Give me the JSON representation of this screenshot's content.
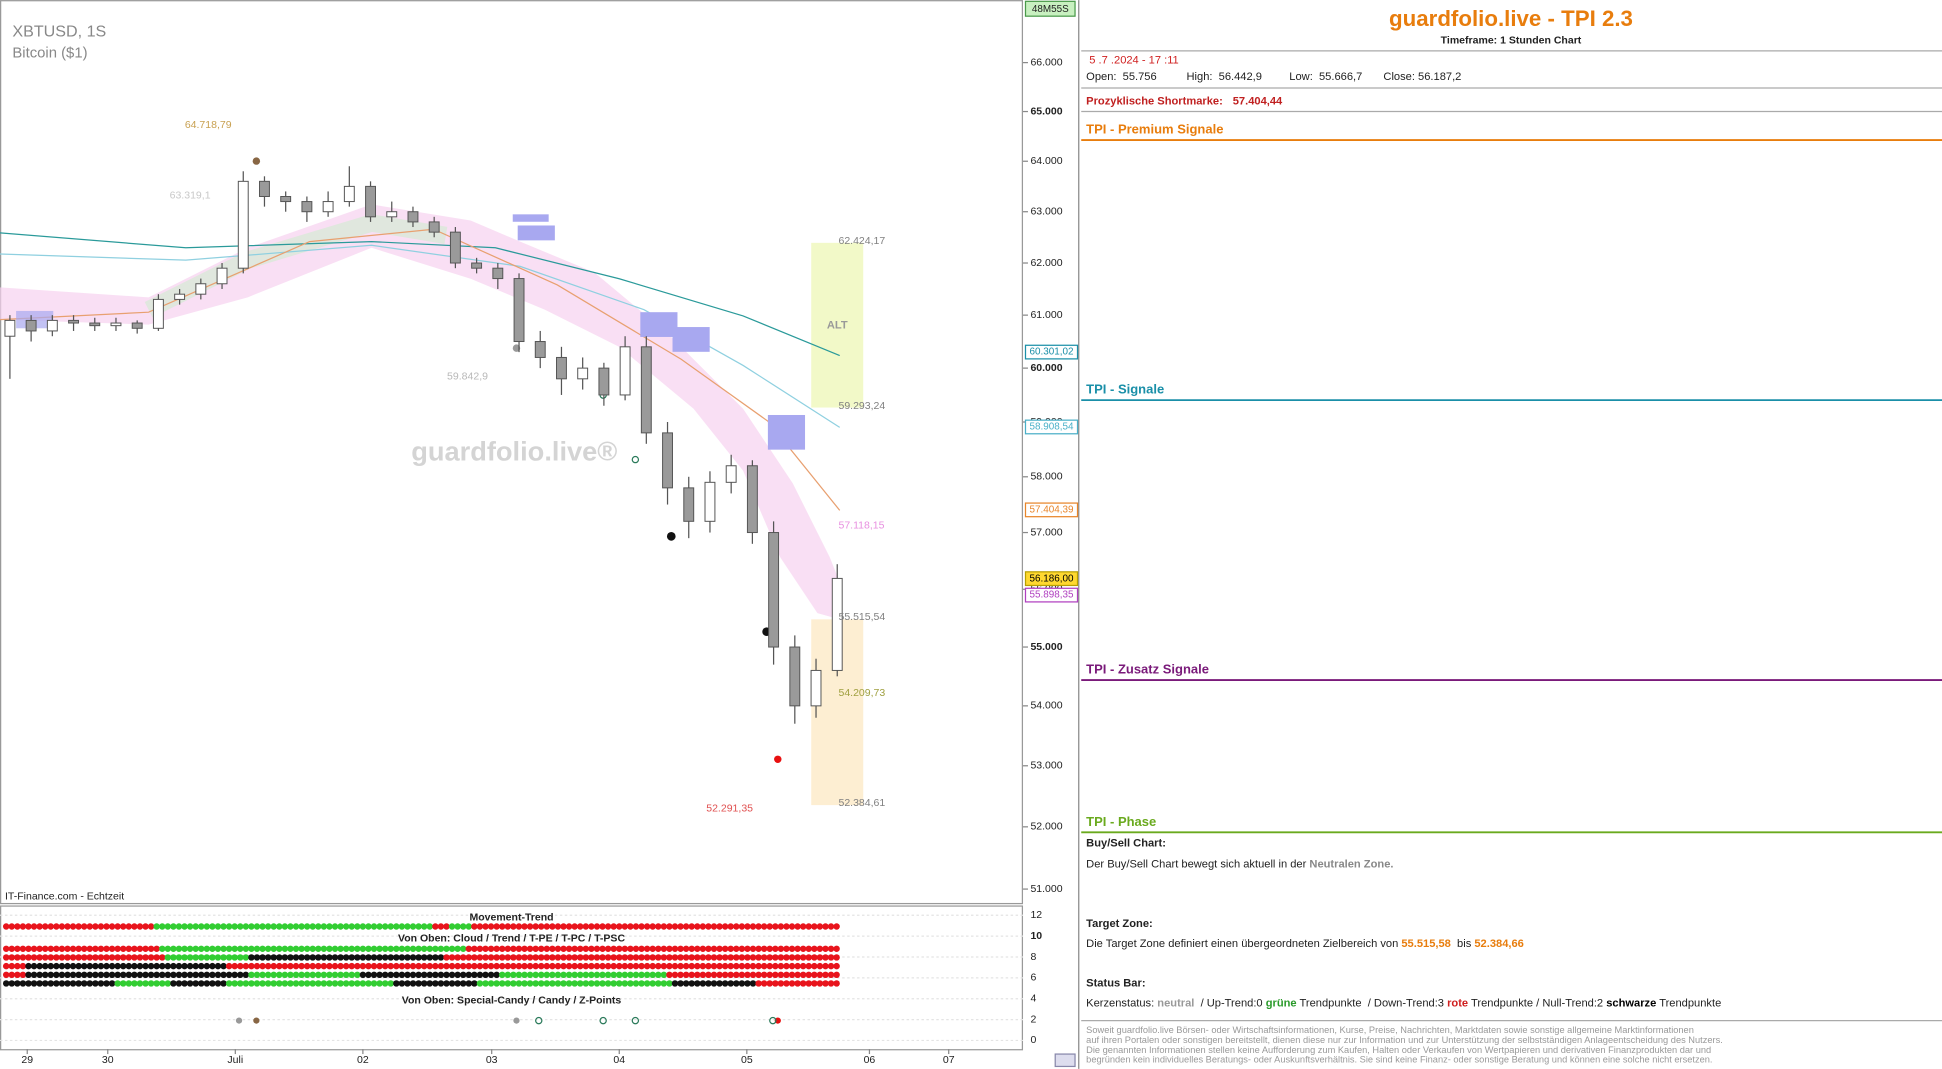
{
  "chart_data": {
    "type": "candlestick",
    "title": "XBTUSD, 1S",
    "subtitle": "Bitcoin ($1)",
    "watermark": "guardfolio.live®",
    "source": "IT-Finance.com - Echtzeit",
    "timer": "48M55S",
    "log_scale": true,
    "ylim": [
      50760,
      67300
    ],
    "yticks": [
      {
        "value": 51000,
        "label": "51.000"
      },
      {
        "value": 52000,
        "label": "52.000"
      },
      {
        "value": 53000,
        "label": "53.000"
      },
      {
        "value": 54000,
        "label": "54.000"
      },
      {
        "value": 55000,
        "label": "55.000"
      },
      {
        "value": 56000,
        "label": "56.000"
      },
      {
        "value": 57000,
        "label": "57.000"
      },
      {
        "value": 58000,
        "label": "58.000"
      },
      {
        "value": 59000,
        "label": "59.000"
      },
      {
        "value": 60000,
        "label": "60.000"
      },
      {
        "value": 61000,
        "label": "61.000"
      },
      {
        "value": 62000,
        "label": "62.000"
      },
      {
        "value": 63000,
        "label": "63.000"
      },
      {
        "value": 64000,
        "label": "64.000"
      },
      {
        "value": 65000,
        "label": "65.000"
      },
      {
        "value": 66000,
        "label": "66.000"
      }
    ],
    "x_labels": [
      "29",
      "30",
      "Juli",
      "02",
      "03",
      "04",
      "05",
      "06",
      "07"
    ],
    "open": [
      60600,
      60900,
      60700,
      60900,
      60850,
      60800,
      60850,
      60750,
      61300,
      61400,
      61600,
      61900,
      63600,
      63300,
      63200,
      63000,
      63200,
      63500,
      62900,
      63000,
      62800,
      62600,
      62000,
      61900,
      61700,
      60500,
      60200,
      59800,
      60000,
      59500,
      60400,
      58800,
      57800,
      57200,
      57900,
      58200,
      57000,
      55000,
      54000,
      54600
    ],
    "high": [
      61000,
      61000,
      61000,
      61000,
      60950,
      60950,
      60900,
      61400,
      61500,
      61700,
      62000,
      63800,
      63700,
      63400,
      63300,
      63400,
      63900,
      63600,
      63200,
      63100,
      62900,
      62700,
      62100,
      62000,
      61800,
      60700,
      60400,
      60200,
      60100,
      60600,
      60600,
      59000,
      58000,
      58100,
      58400,
      58300,
      57200,
      55200,
      54800,
      56440
    ],
    "low": [
      59800,
      60500,
      60600,
      60700,
      60700,
      60700,
      60650,
      60700,
      61200,
      61300,
      61500,
      61800,
      63100,
      63000,
      62800,
      62900,
      63100,
      62800,
      62800,
      62700,
      62500,
      61900,
      61800,
      61500,
      60300,
      60000,
      59500,
      59600,
      59300,
      59400,
      58600,
      57500,
      56900,
      57000,
      57700,
      56800,
      54700,
      53700,
      53800,
      54500
    ],
    "close": [
      60900,
      60700,
      60900,
      60850,
      60800,
      60850,
      60750,
      61300,
      61400,
      61600,
      61900,
      63600,
      63300,
      63200,
      63000,
      63200,
      63500,
      62900,
      63000,
      62800,
      62600,
      62000,
      61900,
      61700,
      60500,
      60200,
      59800,
      60000,
      59500,
      60400,
      58800,
      57800,
      57200,
      57900,
      58200,
      57000,
      55000,
      54000,
      54600,
      56190
    ],
    "up_color": "#ffffff",
    "down_color": "#9a9a9a",
    "price_labels": [
      {
        "value": 60301.02,
        "label": "60.301,02",
        "color": "#1a8fa8",
        "fill": "#ffffff"
      },
      {
        "value": 58908.54,
        "label": "58.908,54",
        "color": "#4ab0c8",
        "fill": "#ffffff"
      },
      {
        "value": 57404.39,
        "label": "57.404,39",
        "color": "#e8852a",
        "fill": "#ffffff"
      },
      {
        "value": 56186.0,
        "label": "56.186,00",
        "color": "#b8a000",
        "fill": "#ffd830"
      },
      {
        "value": 55898.35,
        "label": "55.898,35",
        "color": "#b040c0",
        "fill": "#ffffff"
      }
    ],
    "annotations": [
      {
        "value": 64718.79,
        "label": "64.718,79",
        "color": "#c8a050"
      },
      {
        "value": 63319.1,
        "label": "63.319,1",
        "color": "#c8c8c8"
      },
      {
        "value": 59842.9,
        "label": "59.842,9",
        "color": "#b8b8b8"
      },
      {
        "value": 62424.17,
        "label": "62.424,17",
        "color": "#808080"
      },
      {
        "value": 59293.24,
        "label": "59.293,24",
        "color": "#808080"
      },
      {
        "value": 57118.15,
        "label": "57.118,15",
        "color": "#e890e0"
      },
      {
        "value": 55515.54,
        "label": "55.515,54",
        "color": "#808080"
      },
      {
        "value": 54209.73,
        "label": "54.209,73",
        "color": "#a0a040"
      },
      {
        "value": 52384.61,
        "label": "52.384,61",
        "color": "#808080"
      },
      {
        "value": 52291.35,
        "label": "52.291,35",
        "color": "#e05050"
      }
    ],
    "zone_label": "ALT",
    "indicator": {
      "titles": [
        "Movement-Trend",
        "Von Oben: Cloud / Trend / T-PE / T-PC / T-PSC",
        "Von Oben: Special-Candy / Candy / Z-Points"
      ],
      "ticks": [
        12,
        10,
        8,
        6,
        4,
        2,
        0
      ],
      "palette": {
        "r": "#e8141c",
        "g": "#32cd32",
        "k": "#111111"
      },
      "rows": [
        [
          [
            "r",
            27
          ],
          [
            "g",
            50
          ],
          [
            "r",
            3
          ],
          [
            "g",
            4
          ],
          [
            "r",
            66
          ]
        ],
        [
          [
            "r",
            28
          ],
          [
            "g",
            55
          ],
          [
            "r",
            67
          ]
        ],
        [
          [
            "r",
            29
          ],
          [
            "g",
            15
          ],
          [
            "k",
            35
          ],
          [
            "r",
            71
          ]
        ],
        [
          [
            "r",
            4
          ],
          [
            "k",
            36
          ],
          [
            "r",
            110
          ]
        ],
        [
          [
            "r",
            4
          ],
          [
            "k",
            40
          ],
          [
            "g",
            20
          ],
          [
            "k",
            25
          ],
          [
            "g",
            30
          ],
          [
            "r",
            31
          ]
        ],
        [
          [
            "k",
            20
          ],
          [
            "g",
            10
          ],
          [
            "k",
            10
          ],
          [
            "g",
            30
          ],
          [
            "k",
            15
          ],
          [
            "g",
            35
          ],
          [
            "k",
            15
          ],
          [
            "r",
            15
          ]
        ]
      ]
    }
  },
  "panel": {
    "title": "guardfolio.live - TPI 2.3",
    "timeframe": "Timeframe: 1 Stunden Chart",
    "date": " 5 .7 .2024 - 17 :11",
    "ohlc": [
      "Open:  55.756",
      "High:  56.442,9",
      "Low:  55.666,7",
      "Close: 56.187,2"
    ],
    "shortmark_label": "Prozyklische Shortmarke:",
    "shortmark_value": "57.404,44",
    "sections": [
      {
        "title": "TPI - Premium Signale",
        "color": "#e87d0d"
      },
      {
        "title": "TPI - Signale",
        "color": "#1a8fa8"
      },
      {
        "title": "TPI - Zusatz Signale",
        "color": "#7a1a7a"
      },
      {
        "title": "TPI - Phase",
        "color": "#6aaa1e"
      }
    ],
    "buy_sell": {
      "heading": "Buy/Sell Chart:",
      "text": "Der Buy/Sell Chart bewegt sich aktuell in der ",
      "zone": "Neutralen Zone."
    },
    "target": {
      "heading": "Target Zone:",
      "text": "Die Target Zone definiert einen übergeordneten Zielbereich von ",
      "from": "55.515,58",
      "mid": "  bis ",
      "to": "52.384,66"
    },
    "status": {
      "heading": "Status Bar:",
      "parts": [
        "Kerzenstatus: ",
        "neutral",
        "  / Up-Trend:0 ",
        "grüne",
        " Trendpunkte  / Down-Trend:3 ",
        "rote",
        " Trendpunkte / Null-Trend:2 ",
        "schwarze",
        " Trendpunkte"
      ]
    },
    "disclaimer": [
      "Soweit guardfolio.live Börsen- oder Wirtschaftsinformationen, Kurse, Preise, Nachrichten, Marktdaten sowie sonstige allgemeine Marktinformationen",
      "auf ihren Portalen oder sonstigen bereitstellt, dienen diese nur zur Information und zur Unterstützung der selbstständigen Anlageentscheidung des Nutzers.",
      "Die genannten Informationen stellen keine Aufforderung zum Kaufen, Halten oder Verkaufen von Wertpapieren und derivativen Finanzprodukten dar und",
      "begründen kein individuelles Beratungs- oder Auskunftsverhältnis. Sie sind keine Finanz- oder sonstige Beratung und können eine solche nicht ersetzen."
    ]
  }
}
